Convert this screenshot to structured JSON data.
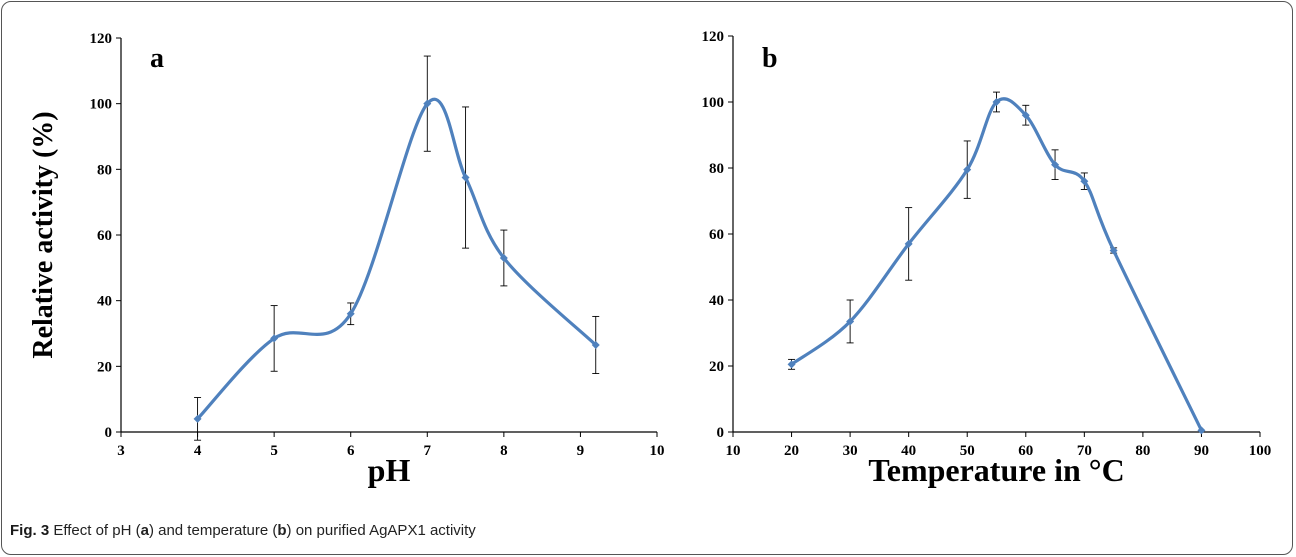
{
  "caption": {
    "fig_label": "Fig. 3",
    "p1": "Effect of pH (",
    "a": "a",
    "p2": ") and temperature (",
    "b": "b",
    "p3": ") on purified AgAPX1 activity"
  },
  "colors": {
    "series": "#4f81bd",
    "axis": "#000000",
    "error": "#000000"
  },
  "chart_data": [
    {
      "type": "line",
      "panel_label": "a",
      "xlabel": "pH",
      "ylabel": "Relative activity (%)",
      "xlim": [
        3,
        10
      ],
      "ylim": [
        0,
        120
      ],
      "xticks": [
        3,
        4,
        5,
        6,
        7,
        8,
        9,
        10
      ],
      "yticks": [
        0,
        20,
        40,
        60,
        80,
        100,
        120
      ],
      "x": [
        4,
        5,
        6,
        7,
        7.5,
        8,
        9.2
      ],
      "y": [
        4,
        28.5,
        36,
        100,
        77.5,
        53,
        26.5
      ],
      "error": [
        6.5,
        10,
        3.3,
        14.5,
        21.5,
        8.5,
        8.7
      ]
    },
    {
      "type": "line",
      "panel_label": "b",
      "xlabel": "Temperature in °C",
      "ylabel": "",
      "xlim": [
        10,
        100
      ],
      "ylim": [
        0,
        120
      ],
      "xticks": [
        10,
        20,
        30,
        40,
        50,
        60,
        70,
        80,
        90,
        100
      ],
      "yticks": [
        0,
        20,
        40,
        60,
        80,
        100,
        120
      ],
      "x": [
        20,
        30,
        40,
        50,
        55,
        60,
        65,
        70,
        75,
        90
      ],
      "y": [
        20.5,
        33.5,
        57,
        79.5,
        100,
        96,
        81,
        76,
        55,
        0.5
      ],
      "error": [
        1.5,
        6.5,
        11,
        8.7,
        3,
        3,
        4.5,
        2.5,
        0.8,
        0
      ]
    }
  ]
}
